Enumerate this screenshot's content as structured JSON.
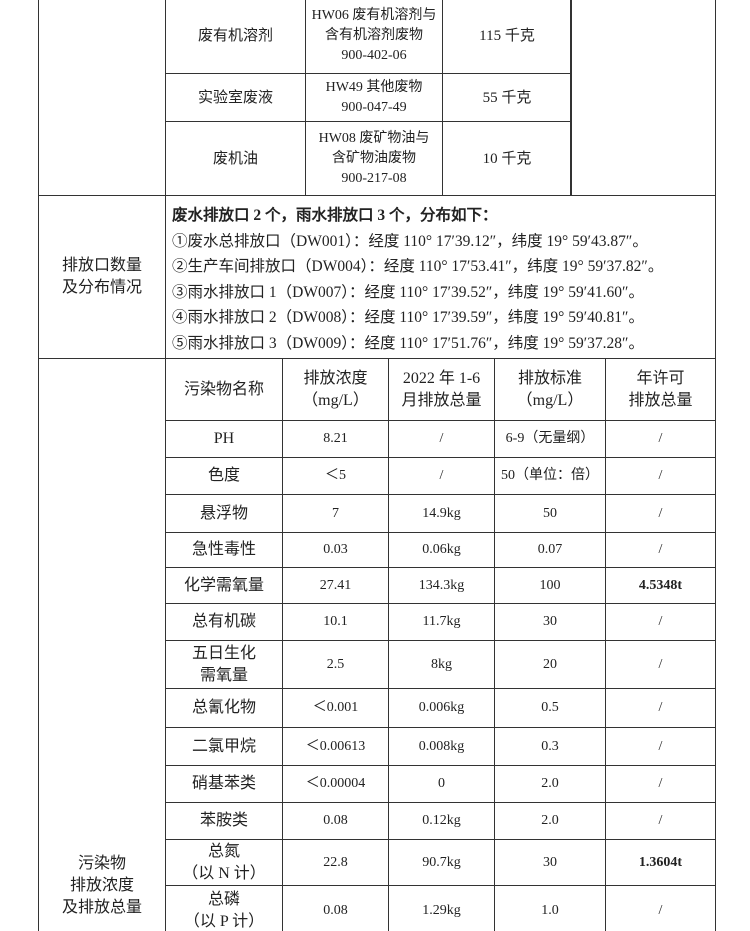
{
  "waste_table": {
    "rows": [
      [
        "废有机溶剂",
        "HW06 废有机溶剂与\n含有机溶剂废物\n900-402-06",
        "115 千克"
      ],
      [
        "实验室废液",
        "HW49 其他废物\n900-047-49",
        "55 千克"
      ],
      [
        "废机油",
        "HW08 废矿物油与\n含矿物油废物\n900-217-08",
        "10 千克"
      ]
    ]
  },
  "outlets": {
    "label": "排放口数量\n及分布情况",
    "lines": [
      "废水排放口 2 个，雨水排放口 3 个，分布如下：",
      "①废水总排放口（DW001）：经度 110° 17′39.12″，纬度 19° 59′43.87″。",
      "②生产车间排放口（DW004）：经度 110° 17′53.41″，纬度 19° 59′37.82″。",
      "③雨水排放口 1（DW007）：经度 110° 17′39.52″，纬度 19° 59′41.60″。",
      "④雨水排放口 2（DW008）：经度 110° 17′39.59″，纬度 19° 59′40.81″。",
      "⑤雨水排放口 3（DW009）：经度 110° 17′51.76″，纬度 19° 59′37.28″。"
    ]
  },
  "pollutants": {
    "label": "污染物\n排放浓度\n及排放总量",
    "header": [
      "污染物名称",
      "排放浓度\n（mg/L）",
      "2022 年 1-6\n月排放总量",
      "排放标准\n（mg/L）",
      "年许可\n排放总量"
    ],
    "rows": [
      [
        "PH",
        "8.21",
        "/",
        "6-9（无量纲）",
        "/"
      ],
      [
        "色度",
        "＜5",
        "/",
        "50（单位：倍）",
        "/"
      ],
      [
        "悬浮物",
        "7",
        "14.9kg",
        "50",
        "/"
      ],
      [
        "急性毒性",
        "0.03",
        "0.06kg",
        "0.07",
        "/"
      ],
      [
        "化学需氧量",
        "27.41",
        "134.3kg",
        "100",
        "4.5348t"
      ],
      [
        "总有机碳",
        "10.1",
        "11.7kg",
        "30",
        "/"
      ],
      [
        "五日生化\n需氧量",
        "2.5",
        "8kg",
        "20",
        "/"
      ],
      [
        "总氰化物",
        "＜0.001",
        "0.006kg",
        "0.5",
        "/"
      ],
      [
        "二氯甲烷",
        "＜0.00613",
        "0.008kg",
        "0.3",
        "/"
      ],
      [
        "硝基苯类",
        "＜0.00004",
        "0",
        "2.0",
        "/"
      ],
      [
        "苯胺类",
        "0.08",
        "0.12kg",
        "2.0",
        "/"
      ],
      [
        "总氮\n（以 N 计）",
        "22.8",
        "90.7kg",
        "30",
        "1.3604t"
      ],
      [
        "总磷\n（以 P 计）",
        "0.08",
        "1.29kg",
        "1.0",
        "/"
      ]
    ]
  }
}
